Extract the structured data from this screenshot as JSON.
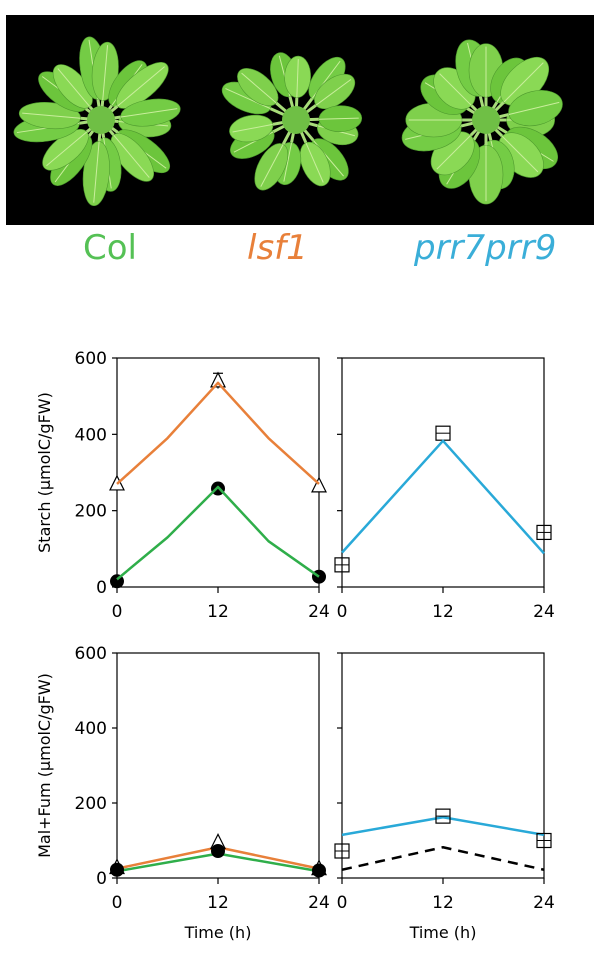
{
  "colors": {
    "col": "#2fae4a",
    "lsf1": "#e8803a",
    "prr7prr9": "#29a9d8",
    "model_dashed": "#000000"
  },
  "photo": {
    "description_icon": "arabidopsis-rosette-icon",
    "genotypes": [
      {
        "name": "Col",
        "color": "#55c155",
        "italic": false
      },
      {
        "name": "lsf1",
        "color": "#e8803a",
        "italic": true
      },
      {
        "name": "prr7prr9",
        "color": "#3aaed8",
        "italic": true
      }
    ]
  },
  "chart_data": [
    {
      "id": "starch-left",
      "type": "line",
      "ylabel": "Starch (µmolC/gFW)",
      "xlabel": "",
      "xlim": [
        0,
        24
      ],
      "ylim": [
        0,
        600
      ],
      "xticks": [
        "0",
        "12",
        "24"
      ],
      "yticks": [
        "0",
        "200",
        "400",
        "600"
      ],
      "series": [
        {
          "key": "lsf1",
          "kind": "points",
          "marker": "triangle",
          "x": [
            0,
            12,
            24
          ],
          "y": [
            270,
            540,
            265
          ],
          "err": [
            0,
            20,
            0
          ]
        },
        {
          "key": "lsf1",
          "kind": "model",
          "style": "solid",
          "x": [
            0,
            6,
            12,
            18,
            24
          ],
          "y": [
            270,
            390,
            535,
            390,
            270
          ]
        },
        {
          "key": "col",
          "kind": "points",
          "marker": "circle",
          "x": [
            0,
            12,
            24
          ],
          "y": [
            15,
            258,
            27
          ],
          "err": [
            0,
            0,
            0
          ]
        },
        {
          "key": "col",
          "kind": "model",
          "style": "solid",
          "x": [
            0,
            6,
            12,
            18,
            24
          ],
          "y": [
            20,
            130,
            262,
            120,
            27
          ]
        }
      ]
    },
    {
      "id": "starch-right",
      "type": "line",
      "ylabel": "",
      "xlabel": "",
      "xlim": [
        0,
        24
      ],
      "ylim": [
        0,
        600
      ],
      "xticks": [
        "0",
        "12",
        "24"
      ],
      "yticks": [
        "",
        "",
        "",
        ""
      ],
      "series": [
        {
          "key": "prr7prr9",
          "kind": "points",
          "marker": "square",
          "x": [
            0,
            12,
            24
          ],
          "y": [
            58,
            403,
            143
          ],
          "err": [
            0,
            0,
            0
          ]
        },
        {
          "key": "prr7prr9",
          "kind": "model",
          "style": "solid",
          "x": [
            0,
            12,
            24
          ],
          "y": [
            90,
            383,
            88
          ]
        }
      ]
    },
    {
      "id": "malfum-left",
      "type": "line",
      "ylabel": "Mal+Fum (µmolC/gFW)",
      "xlabel": "Time (h)",
      "xlim": [
        0,
        24
      ],
      "ylim": [
        0,
        600
      ],
      "xticks": [
        "0",
        "12",
        "24"
      ],
      "yticks": [
        "0",
        "200",
        "400",
        "600"
      ],
      "series": [
        {
          "key": "lsf1",
          "kind": "model",
          "style": "solid",
          "x": [
            0,
            12,
            24
          ],
          "y": [
            25,
            82,
            25
          ]
        },
        {
          "key": "col",
          "kind": "model",
          "style": "solid",
          "x": [
            0,
            12,
            24
          ],
          "y": [
            18,
            65,
            18
          ]
        },
        {
          "key": "lsf1",
          "kind": "points",
          "marker": "triangle",
          "x": [
            0,
            12,
            24
          ],
          "y": [
            28,
            95,
            25
          ],
          "err": [
            0,
            0,
            0
          ]
        },
        {
          "key": "col",
          "kind": "points",
          "marker": "circle",
          "x": [
            0,
            12,
            24
          ],
          "y": [
            22,
            72,
            20
          ],
          "err": [
            0,
            0,
            0
          ]
        }
      ]
    },
    {
      "id": "malfum-right",
      "type": "line",
      "ylabel": "",
      "xlabel": "Time (h)",
      "xlim": [
        0,
        24
      ],
      "ylim": [
        0,
        600
      ],
      "xticks": [
        "0",
        "12",
        "24"
      ],
      "yticks": [
        "",
        "",
        "",
        ""
      ],
      "series": [
        {
          "key": "prr7prr9",
          "kind": "model",
          "style": "solid",
          "x": [
            0,
            12,
            24
          ],
          "y": [
            115,
            162,
            115
          ]
        },
        {
          "key": "model_dashed",
          "kind": "model",
          "style": "dashed",
          "x": [
            0,
            12,
            24
          ],
          "y": [
            22,
            82,
            22
          ]
        },
        {
          "key": "prr7prr9",
          "kind": "points",
          "marker": "square",
          "x": [
            0,
            12,
            24
          ],
          "y": [
            72,
            165,
            100
          ],
          "err": [
            0,
            0,
            0
          ]
        }
      ]
    }
  ]
}
